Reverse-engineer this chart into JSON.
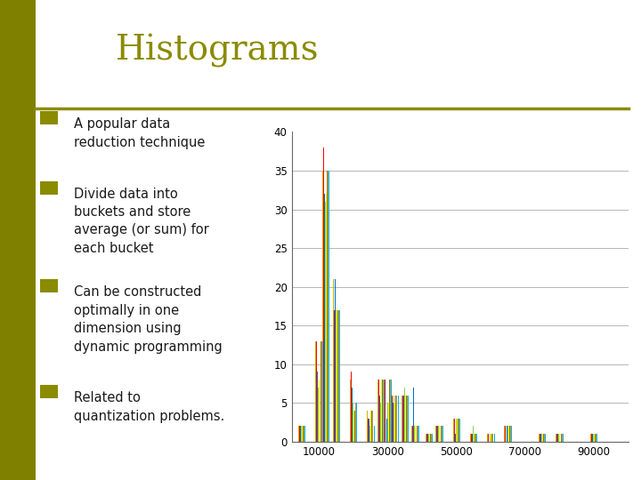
{
  "title": "Histograms",
  "title_color": "#8B8B00",
  "title_fontsize": 28,
  "background_color": "#FFFFFF",
  "left_panel_color": "#E8E8E8",
  "bullet_color": "#1A1A1A",
  "bullet_points": [
    "A popular data\nreduction technique",
    "Divide data into\nbuckets and store\naverage (or sum) for\neach bucket",
    "Can be constructed\noptimally in one\ndimension using\ndynamic programming",
    "Related to\nquantization problems."
  ],
  "square_bullet_color": "#8B8B00",
  "separator_color": "#8B8B00",
  "chart_bg": "#FFFFFF",
  "bar_colors": [
    "#C8B400",
    "#FF0000",
    "#0070C0",
    "#92D050",
    "#FFFF00",
    "#808000",
    "#C0A050",
    "#00B0F0"
  ],
  "x_positions": [
    5000,
    10000,
    12000,
    15000,
    20000,
    25000,
    28000,
    30000,
    32000,
    35000,
    38000,
    42000,
    45000,
    50000,
    55000,
    60000,
    65000,
    70000,
    75000,
    80000,
    85000,
    90000,
    95000
  ],
  "series_data": [
    [
      2,
      13,
      35,
      21,
      8,
      4,
      8,
      8,
      7,
      6,
      2,
      1,
      2,
      3,
      1,
      1,
      2,
      0,
      1,
      1,
      0,
      1,
      0
    ],
    [
      2,
      13,
      38,
      17,
      9,
      3,
      8,
      8,
      6,
      6,
      2,
      1,
      2,
      3,
      1,
      1,
      2,
      0,
      1,
      1,
      0,
      1,
      0
    ],
    [
      2,
      9,
      32,
      21,
      7,
      3,
      6,
      3,
      5,
      6,
      7,
      1,
      2,
      1,
      1,
      0,
      2,
      0,
      1,
      1,
      0,
      1,
      0
    ],
    [
      2,
      7,
      31,
      17,
      5,
      2,
      5,
      5,
      6,
      7,
      2,
      1,
      2,
      3,
      2,
      1,
      2,
      0,
      1,
      1,
      0,
      1,
      0
    ],
    [
      2,
      8,
      32,
      17,
      4,
      4,
      8,
      5,
      5,
      6,
      2,
      1,
      2,
      3,
      1,
      1,
      2,
      0,
      1,
      1,
      0,
      1,
      0
    ],
    [
      2,
      13,
      35,
      17,
      4,
      4,
      8,
      8,
      6,
      6,
      2,
      1,
      2,
      3,
      1,
      1,
      2,
      0,
      1,
      1,
      0,
      1,
      0
    ],
    [
      2,
      13,
      35,
      17,
      5,
      4,
      8,
      8,
      6,
      6,
      2,
      1,
      2,
      3,
      1,
      1,
      2,
      0,
      1,
      1,
      0,
      1,
      0
    ],
    [
      2,
      13,
      35,
      17,
      5,
      2,
      8,
      8,
      6,
      6,
      2,
      1,
      2,
      3,
      1,
      1,
      2,
      0,
      1,
      1,
      0,
      1,
      0
    ]
  ],
  "ylim": [
    0,
    40
  ],
  "yticks": [
    0,
    5,
    10,
    15,
    20,
    25,
    30,
    35,
    40
  ],
  "xtick_labels": [
    "10000",
    "30000",
    "50000",
    "70000",
    "90000"
  ],
  "xtick_positions": [
    10000,
    30000,
    50000,
    70000,
    90000
  ],
  "grid_color": "#AAAAAA",
  "left_strip_color": "#808000"
}
